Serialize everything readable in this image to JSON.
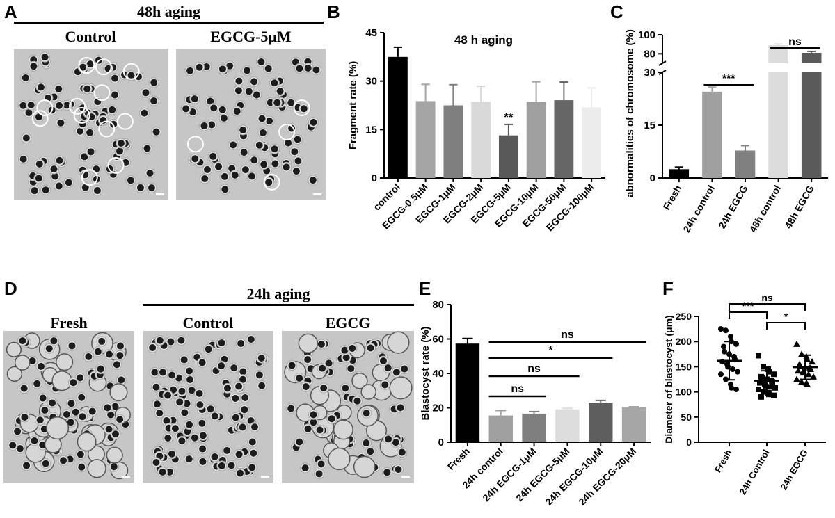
{
  "panels": {
    "A": {
      "letter": "A",
      "header": "48h aging",
      "labels": [
        "Control",
        "EGCG-5μM"
      ]
    },
    "B": {
      "letter": "B"
    },
    "C": {
      "letter": "C"
    },
    "D": {
      "letter": "D",
      "header": "24h aging",
      "labels": [
        "Fresh",
        "Control",
        "EGCG"
      ]
    },
    "E": {
      "letter": "E"
    },
    "F": {
      "letter": "F"
    }
  },
  "colors": {
    "black": "#000000",
    "dark_gray": "#5a5a5a",
    "mid_gray": "#8a8a8a",
    "light_gray": "#d9d9d9",
    "pale_gray": "#ebebeb"
  },
  "chart_data": [
    {
      "id": "B",
      "type": "bar",
      "title": "48 h aging",
      "ylabel": "Fragment rate (%)",
      "ylim": [
        0,
        45
      ],
      "yticks": [
        0,
        15,
        30,
        45
      ],
      "categories": [
        "control",
        "EGCG-0.5μM",
        "EGCG-1μM",
        "EGCG-2μM",
        "EGCG-5μM",
        "EGCG-10μM",
        "EGCG-50μM",
        "EGCG-100μM"
      ],
      "values": [
        37.5,
        23.8,
        22.5,
        23.6,
        13.2,
        23.6,
        24.1,
        21.9
      ],
      "errors": [
        3,
        5.2,
        6.4,
        4.8,
        3.4,
        6.2,
        5.6,
        6
      ],
      "colors": [
        "#000000",
        "#a5a5a5",
        "#7f7f7f",
        "#d9d9d9",
        "#595959",
        "#9f9f9f",
        "#666666",
        "#ececec"
      ],
      "annotations": [
        {
          "category": "EGCG-5μM",
          "text": "**"
        }
      ]
    },
    {
      "id": "C",
      "type": "bar",
      "ylabel": "abnormalities of chromosome (%)",
      "broken_axis": {
        "lower_ylim": [
          0,
          30
        ],
        "upper_ylim": [
          70,
          100
        ]
      },
      "yticks": [
        0,
        15,
        30,
        80,
        100
      ],
      "categories": [
        "Fresh",
        "24h control",
        "24h EGCG",
        "48h control",
        "48h EGCG"
      ],
      "values": [
        2.5,
        24.5,
        7.8,
        89,
        81
      ],
      "errors": [
        0.6,
        1.3,
        1.4,
        1.2,
        1.5
      ],
      "colors": [
        "#000000",
        "#a0a0a0",
        "#808080",
        "#dcdcdc",
        "#5a5a5a"
      ],
      "comparisons": [
        {
          "from": "24h control",
          "to": "24h EGCG",
          "text": "***"
        },
        {
          "from": "48h control",
          "to": "48h EGCG",
          "text": "ns"
        }
      ]
    },
    {
      "id": "E",
      "type": "bar",
      "ylabel": "Blastocyst rate (%)",
      "ylim": [
        0,
        80
      ],
      "yticks": [
        0,
        20,
        40,
        60,
        80
      ],
      "categories": [
        "Fresh",
        "24h control",
        "24h EGCG-1μM",
        "24h EGCG-5μM",
        "24h EGCG-10μM",
        "24h EGCG-20μM"
      ],
      "values": [
        57.3,
        15.5,
        16.6,
        19.1,
        23,
        20.2
      ],
      "errors": [
        3,
        2.9,
        1.2,
        0.6,
        1.3,
        0.4
      ],
      "colors": [
        "#000000",
        "#a0a0a0",
        "#7f7f7f",
        "#dddddd",
        "#5e5e5e",
        "#a6a6a6"
      ],
      "comparisons": [
        {
          "from": "24h control",
          "to": "24h EGCG-1μM",
          "text": "ns"
        },
        {
          "from": "24h control",
          "to": "24h EGCG-5μM",
          "text": "ns"
        },
        {
          "from": "24h control",
          "to": "24h EGCG-10μM",
          "text": "*"
        },
        {
          "from": "24h control",
          "to": "24h EGCG-20μM",
          "text": "ns"
        }
      ]
    },
    {
      "id": "F",
      "type": "scatter",
      "ylabel": "Diameter of blastocyst (μm)",
      "ylim": [
        0,
        250
      ],
      "yticks": [
        0,
        50,
        100,
        150,
        200,
        250
      ],
      "categories": [
        "Fresh",
        "24h Control",
        "24h EGCG"
      ],
      "markers": [
        "circle",
        "square",
        "triangle"
      ],
      "mean": [
        162,
        122,
        149
      ],
      "sd": [
        38,
        20,
        24
      ],
      "points": [
        [
          225,
          222,
          210,
          200,
          195,
          190,
          180,
          175,
          170,
          165,
          160,
          155,
          150,
          145,
          140,
          135,
          125,
          115,
          108,
          105
        ],
        [
          172,
          150,
          145,
          140,
          135,
          130,
          128,
          125,
          122,
          120,
          118,
          115,
          112,
          110,
          108,
          105,
          100,
          98,
          95,
          93,
          90
        ],
        [
          195,
          175,
          170,
          165,
          160,
          155,
          152,
          150,
          148,
          145,
          142,
          140,
          138,
          135,
          130,
          125,
          120,
          118,
          115
        ]
      ],
      "comparisons": [
        {
          "from": "Fresh",
          "to": "24h EGCG",
          "text": "ns"
        },
        {
          "from": "Fresh",
          "to": "24h Control",
          "text": "***"
        },
        {
          "from": "24h Control",
          "to": "24h EGCG",
          "text": "*"
        }
      ]
    }
  ]
}
